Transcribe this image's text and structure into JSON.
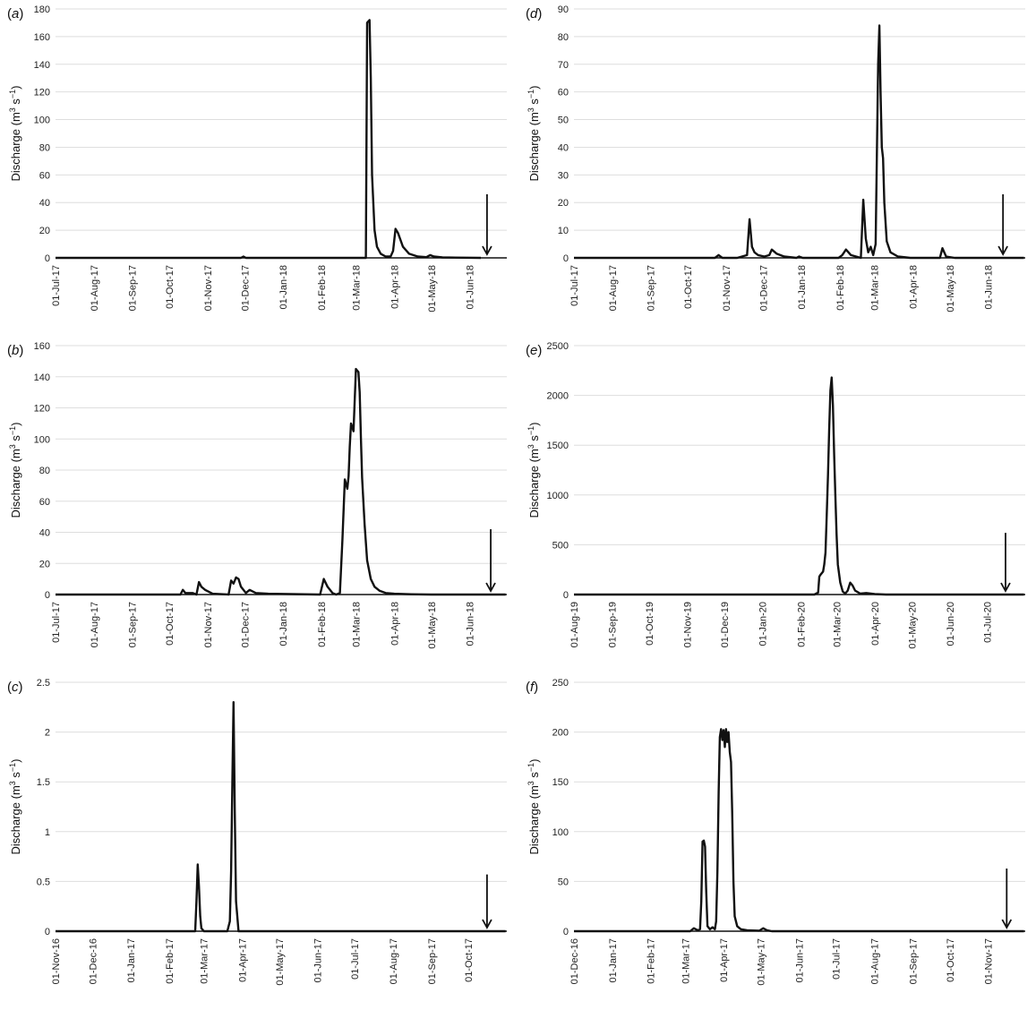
{
  "chart_data": [
    {
      "id": "a",
      "panel_label": "a",
      "type": "line",
      "ylabel": "Discharge (m3 s−1)",
      "ylim": [
        0,
        180
      ],
      "yticks": [
        0,
        20,
        40,
        60,
        80,
        100,
        120,
        140,
        160,
        180
      ],
      "xlim": [
        "2017-07-01",
        "2018-07-01"
      ],
      "xticks": [
        "01-Jul-17",
        "01-Aug-17",
        "01-Sep-17",
        "01-Oct-17",
        "01-Nov-17",
        "01-Dec-17",
        "01-Jan-18",
        "01-Feb-18",
        "01-Mar-18",
        "01-Apr-18",
        "01-May-18",
        "01-Jun-18"
      ],
      "grid": true,
      "arrow": {
        "date": "2018-06-15",
        "from": 46,
        "to": 0
      },
      "series": [
        {
          "x": [
            "2017-07-01",
            "2017-11-28",
            "2017-11-30",
            "2017-12-02",
            "2018-03-09",
            "2018-03-10",
            "2018-03-11",
            "2018-03-12",
            "2018-03-13",
            "2018-03-14",
            "2018-03-15",
            "2018-03-16",
            "2018-03-18",
            "2018-03-21",
            "2018-03-25",
            "2018-03-29",
            "2018-03-31",
            "2018-04-02",
            "2018-04-04",
            "2018-04-08",
            "2018-04-13",
            "2018-04-20",
            "2018-04-27",
            "2018-04-30",
            "2018-05-03",
            "2018-05-10",
            "2018-06-10"
          ],
          "y": [
            0,
            0,
            1,
            0,
            0,
            170,
            171,
            172,
            130,
            60,
            40,
            20,
            8,
            3,
            1,
            1,
            5,
            21,
            18,
            8,
            3,
            1,
            0.5,
            2,
            1,
            0.3,
            0
          ]
        }
      ]
    },
    {
      "id": "d",
      "panel_label": "d",
      "type": "line",
      "ylabel": "Discharge (m3 s−1)",
      "ylim": [
        0,
        90
      ],
      "yticks": [
        0,
        10,
        20,
        30,
        40,
        50,
        60,
        70,
        80,
        90
      ],
      "xlim": [
        "2017-07-01",
        "2018-07-01"
      ],
      "xticks": [
        "01-Jul-17",
        "01-Aug-17",
        "01-Sep-17",
        "01-Oct-17",
        "01-Nov-17",
        "01-Dec-17",
        "01-Jan-18",
        "01-Feb-18",
        "01-Mar-18",
        "01-Apr-18",
        "01-May-18",
        "01-Jun-18"
      ],
      "grid": true,
      "arrow": {
        "date": "2018-06-13",
        "from": 23,
        "to": 0
      },
      "series": [
        {
          "x": [
            "2017-07-01",
            "2017-10-23",
            "2017-10-26",
            "2017-10-29",
            "2017-11-10",
            "2017-11-18",
            "2017-11-20",
            "2017-11-22",
            "2017-11-24",
            "2017-11-27",
            "2017-12-02",
            "2017-12-06",
            "2017-12-08",
            "2017-12-12",
            "2017-12-18",
            "2017-12-28",
            "2017-12-30",
            "2018-01-02",
            "2018-01-31",
            "2018-02-03",
            "2018-02-06",
            "2018-02-10",
            "2018-02-18",
            "2018-02-20",
            "2018-02-22",
            "2018-02-24",
            "2018-02-26",
            "2018-02-28",
            "2018-03-02",
            "2018-03-04",
            "2018-03-05",
            "2018-03-06",
            "2018-03-07",
            "2018-03-08",
            "2018-03-09",
            "2018-03-11",
            "2018-03-14",
            "2018-03-20",
            "2018-03-30",
            "2018-04-23",
            "2018-04-25",
            "2018-04-28",
            "2018-05-05",
            "2018-06-30"
          ],
          "y": [
            0,
            0,
            1,
            0,
            0,
            1,
            14,
            4,
            2,
            1,
            0.5,
            1,
            3,
            1.5,
            0.5,
            0,
            0.5,
            0,
            0,
            1,
            3,
            1,
            0,
            21,
            7,
            2,
            4,
            1,
            5,
            70,
            84,
            60,
            40,
            36,
            20,
            6,
            2,
            0.5,
            0,
            0,
            3.5,
            0.5,
            0,
            0
          ]
        }
      ]
    },
    {
      "id": "b",
      "panel_label": "b",
      "type": "line",
      "ylabel": "Discharge (m3 s−1)",
      "ylim": [
        0,
        160
      ],
      "yticks": [
        0,
        20,
        40,
        60,
        80,
        100,
        120,
        140,
        160
      ],
      "xlim": [
        "2017-07-01",
        "2018-07-01"
      ],
      "xticks": [
        "01-Jul-17",
        "01-Aug-17",
        "01-Sep-17",
        "01-Oct-17",
        "01-Nov-17",
        "01-Dec-17",
        "01-Jan-18",
        "01-Feb-18",
        "01-Mar-18",
        "01-Apr-18",
        "01-May-18",
        "01-Jun-18"
      ],
      "grid": true,
      "arrow": {
        "date": "2018-06-18",
        "from": 42,
        "to": 0
      },
      "series": [
        {
          "x": [
            "2017-07-01",
            "2017-10-10",
            "2017-10-12",
            "2017-10-14",
            "2017-10-20",
            "2017-10-23",
            "2017-10-25",
            "2017-10-27",
            "2017-10-30",
            "2017-11-05",
            "2017-11-18",
            "2017-11-20",
            "2017-11-22",
            "2017-11-24",
            "2017-11-26",
            "2017-11-28",
            "2017-12-02",
            "2017-12-05",
            "2017-12-10",
            "2017-12-20",
            "2018-01-31",
            "2018-02-03",
            "2018-02-06",
            "2018-02-10",
            "2018-02-13",
            "2018-02-16",
            "2018-02-18",
            "2018-02-20",
            "2018-02-22",
            "2018-02-23",
            "2018-02-24",
            "2018-02-25",
            "2018-02-27",
            "2018-03-01",
            "2018-03-03",
            "2018-03-04",
            "2018-03-05",
            "2018-03-06",
            "2018-03-08",
            "2018-03-10",
            "2018-03-13",
            "2018-03-16",
            "2018-03-20",
            "2018-03-25",
            "2018-04-01",
            "2018-04-15",
            "2018-05-01",
            "2018-06-30"
          ],
          "y": [
            0,
            0,
            3,
            1,
            1,
            0,
            8,
            5,
            3,
            0.5,
            0,
            9,
            7,
            11,
            10,
            5,
            1,
            3,
            1,
            0.5,
            0,
            10,
            5,
            1,
            0,
            1,
            35,
            74,
            68,
            76,
            95,
            110,
            105,
            145,
            143,
            130,
            100,
            75,
            45,
            22,
            10,
            5,
            2.5,
            1,
            0.5,
            0.2,
            0,
            0
          ]
        }
      ]
    },
    {
      "id": "e",
      "panel_label": "e",
      "type": "line",
      "ylabel": "Discharge (m3 s−1)",
      "ylim": [
        0,
        2500
      ],
      "yticks": [
        0,
        500,
        1000,
        1500,
        2000,
        2500
      ],
      "xlim": [
        "2019-08-01",
        "2020-08-01"
      ],
      "xticks": [
        "01-Aug-19",
        "01-Sep-19",
        "01-Oct-19",
        "01-Nov-19",
        "01-Dec-19",
        "01-Jan-20",
        "01-Feb-20",
        "01-Mar-20",
        "01-Apr-20",
        "01-May-20",
        "01-Jun-20",
        "01-Jul-20"
      ],
      "grid": true,
      "arrow": {
        "date": "2020-07-16",
        "from": 620,
        "to": 0
      },
      "series": [
        {
          "x": [
            "2019-08-01",
            "2020-02-12",
            "2020-02-15",
            "2020-02-16",
            "2020-02-17",
            "2020-02-19",
            "2020-02-20",
            "2020-02-21",
            "2020-02-22",
            "2020-02-23",
            "2020-02-24",
            "2020-02-25",
            "2020-02-26",
            "2020-02-27",
            "2020-02-28",
            "2020-02-29",
            "2020-03-01",
            "2020-03-02",
            "2020-03-04",
            "2020-03-06",
            "2020-03-08",
            "2020-03-10",
            "2020-03-12",
            "2020-03-14",
            "2020-03-16",
            "2020-03-18",
            "2020-03-20",
            "2020-03-25",
            "2020-04-01",
            "2020-04-10",
            "2020-07-31"
          ],
          "y": [
            0,
            0,
            20,
            180,
            200,
            230,
            300,
            420,
            800,
            1200,
            1650,
            2050,
            2180,
            1900,
            1400,
            1000,
            600,
            300,
            120,
            30,
            10,
            40,
            120,
            90,
            40,
            25,
            10,
            15,
            5,
            0,
            0
          ]
        }
      ]
    },
    {
      "id": "c",
      "panel_label": "c",
      "type": "line",
      "ylabel": "Discharge (m3 s−1)",
      "ylim": [
        0,
        2.5
      ],
      "yticks": [
        0,
        0.5,
        1,
        1.5,
        2,
        2.5
      ],
      "xlim": [
        "2016-11-01",
        "2017-11-01"
      ],
      "xticks": [
        "01-Nov-16",
        "01-Dec-16",
        "01-Jan-17",
        "01-Feb-17",
        "01-Mar-17",
        "01-Apr-17",
        "01-May-17",
        "01-Jun-17",
        "01-Jul-17",
        "01-Aug-17",
        "01-Sep-17",
        "01-Oct-17"
      ],
      "grid": true,
      "arrow": {
        "date": "2017-10-16",
        "from": 0.57,
        "to": 0
      },
      "series": [
        {
          "x": [
            "2016-11-01",
            "2017-02-22",
            "2017-02-23",
            "2017-02-24",
            "2017-02-25",
            "2017-02-26",
            "2017-02-27",
            "2017-03-01",
            "2017-03-20",
            "2017-03-22",
            "2017-03-23",
            "2017-03-24",
            "2017-03-25",
            "2017-03-26",
            "2017-03-27",
            "2017-03-29",
            "2017-10-31"
          ],
          "y": [
            0,
            0,
            0.3,
            0.67,
            0.45,
            0.15,
            0.03,
            0,
            0,
            0.1,
            0.6,
            1.5,
            2.3,
            1.2,
            0.3,
            0,
            0
          ]
        }
      ]
    },
    {
      "id": "f",
      "panel_label": "f",
      "type": "line",
      "ylabel": "Discharge (m3 s−1)",
      "ylim": [
        0,
        250
      ],
      "yticks": [
        0,
        50,
        100,
        150,
        200,
        250
      ],
      "xlim": [
        "2016-12-01",
        "2017-12-01"
      ],
      "xticks": [
        "01-Dec-16",
        "01-Jan-17",
        "01-Feb-17",
        "01-Mar-17",
        "01-Apr-17",
        "01-May-17",
        "01-Jun-17",
        "01-Jul-17",
        "01-Aug-17",
        "01-Sep-17",
        "01-Oct-17",
        "01-Nov-17"
      ],
      "grid": true,
      "arrow": {
        "date": "2017-11-16",
        "from": 63,
        "to": 0
      },
      "series": [
        {
          "x": [
            "2016-12-01",
            "2017-03-05",
            "2017-03-08",
            "2017-03-11",
            "2017-03-13",
            "2017-03-14",
            "2017-03-15",
            "2017-03-16",
            "2017-03-17",
            "2017-03-18",
            "2017-03-19",
            "2017-03-21",
            "2017-03-23",
            "2017-03-25",
            "2017-03-26",
            "2017-03-27",
            "2017-03-28",
            "2017-03-29",
            "2017-03-30",
            "2017-03-31",
            "2017-04-01",
            "2017-04-02",
            "2017-04-03",
            "2017-04-04",
            "2017-04-05",
            "2017-04-06",
            "2017-04-07",
            "2017-04-08",
            "2017-04-09",
            "2017-04-10",
            "2017-04-12",
            "2017-04-15",
            "2017-04-20",
            "2017-04-30",
            "2017-05-03",
            "2017-05-06",
            "2017-05-10",
            "2017-11-30"
          ],
          "y": [
            0,
            0,
            3,
            1,
            2,
            30,
            90,
            91,
            85,
            40,
            5,
            2,
            4,
            2,
            10,
            60,
            140,
            195,
            203,
            192,
            202,
            185,
            203,
            190,
            200,
            180,
            170,
            120,
            50,
            15,
            5,
            2,
            1,
            0.5,
            3,
            1,
            0,
            0
          ]
        }
      ]
    }
  ]
}
